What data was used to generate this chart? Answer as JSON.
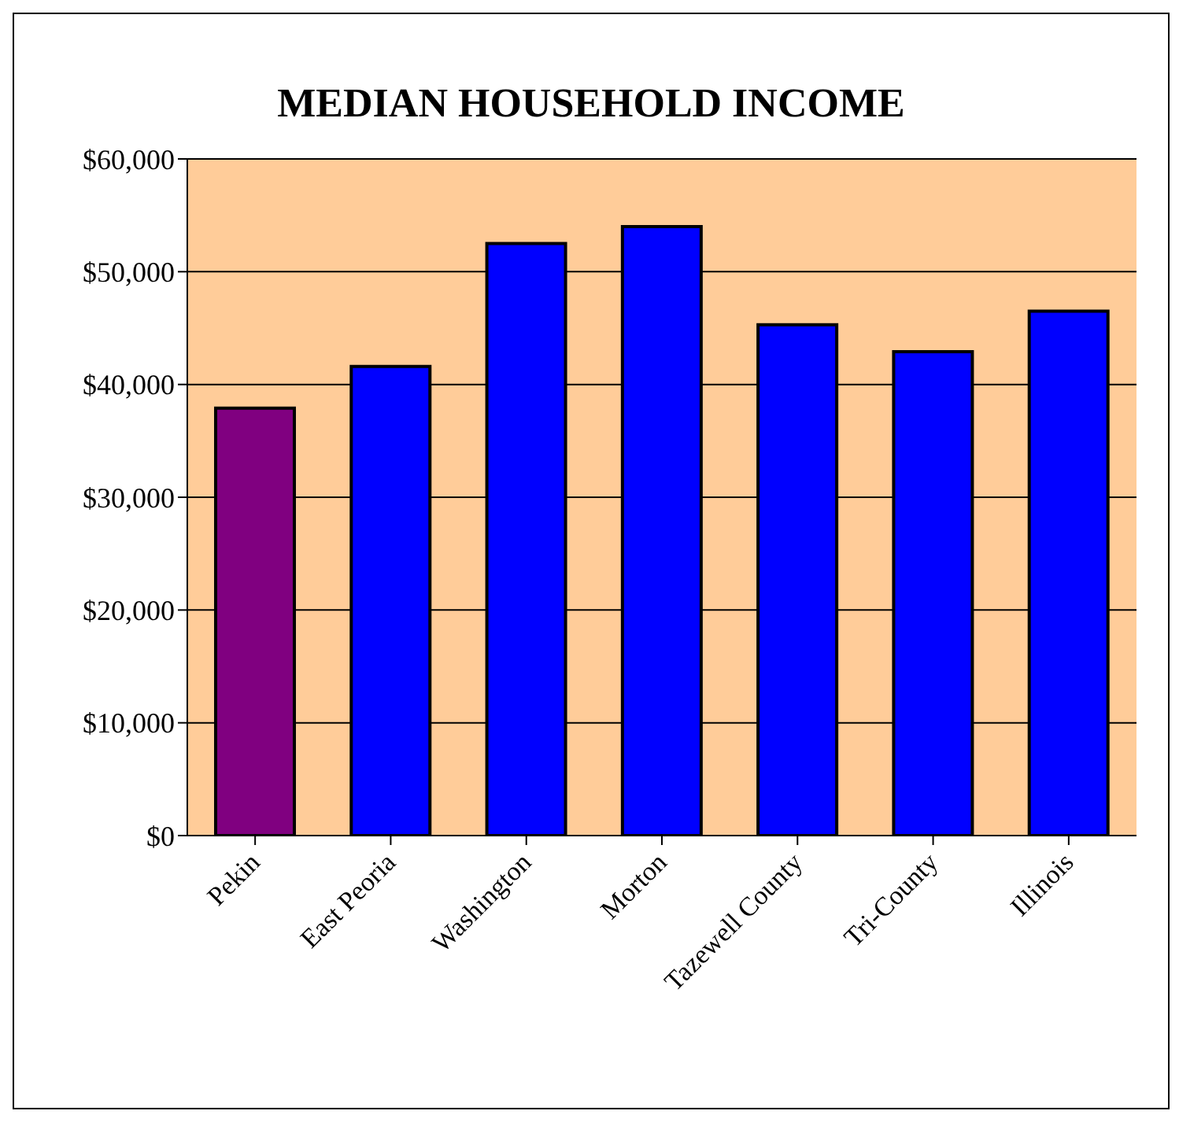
{
  "chart_data": {
    "type": "bar",
    "title": "MEDIAN HOUSEHOLD INCOME",
    "categories": [
      "Pekin",
      "East Peoria",
      "Washington",
      "Morton",
      "Tazewell County",
      "Tri-County",
      "Illinois"
    ],
    "values": [
      37900,
      41600,
      52500,
      54000,
      45300,
      42900,
      46500
    ],
    "colors": [
      "#800080",
      "#0000ff",
      "#0000ff",
      "#0000ff",
      "#0000ff",
      "#0000ff",
      "#0000ff"
    ],
    "ylim": [
      0,
      60000
    ],
    "yticks": [
      {
        "value": 0,
        "label": "$0"
      },
      {
        "value": 10000,
        "label": "$10,000"
      },
      {
        "value": 20000,
        "label": "$20,000"
      },
      {
        "value": 30000,
        "label": "$30,000"
      },
      {
        "value": 40000,
        "label": "$40,000"
      },
      {
        "value": 50000,
        "label": "$50,000"
      },
      {
        "value": 60000,
        "label": "$60,000"
      }
    ],
    "grid": "y"
  }
}
